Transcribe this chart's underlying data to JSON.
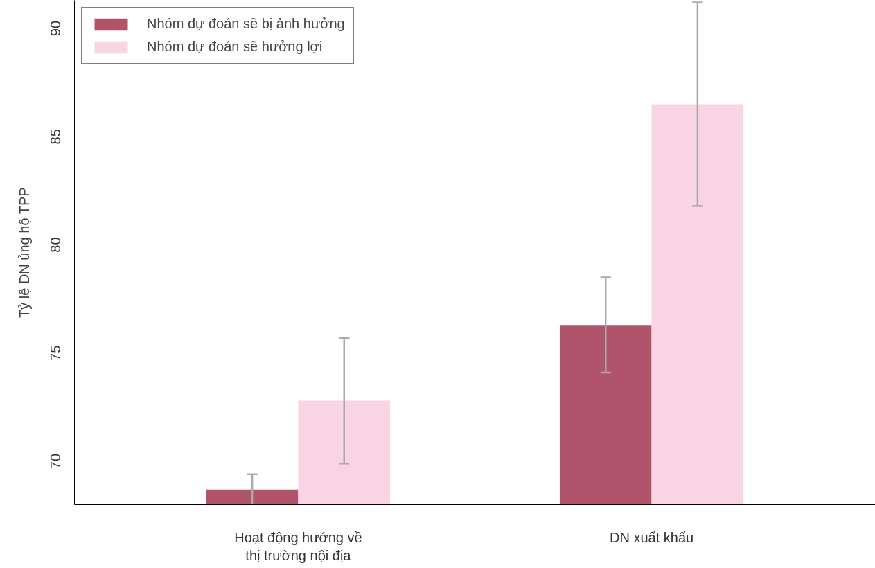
{
  "chart_data": {
    "type": "bar",
    "ylabel": "Tỷ lệ DN ủng hộ TPP",
    "categories": [
      "Hoạt động hướng về\nthị trường nội địa",
      "DN xuất khẩu"
    ],
    "series": [
      {
        "name": "Nhóm dự đoán sẽ bị ảnh hưởng",
        "color": "#b0546c",
        "values": [
          68.7,
          76.3
        ],
        "errors": [
          0.7,
          2.2
        ]
      },
      {
        "name": "Nhóm dự đoán sẽ hưởng lợi",
        "color": "#f8d4e4",
        "values": [
          72.8,
          86.5
        ],
        "errors": [
          2.9,
          4.7
        ]
      }
    ],
    "ylim": [
      68,
      91.3
    ],
    "yticks": [
      70,
      75,
      80,
      85,
      90
    ],
    "grid": false,
    "legend": "top left"
  }
}
